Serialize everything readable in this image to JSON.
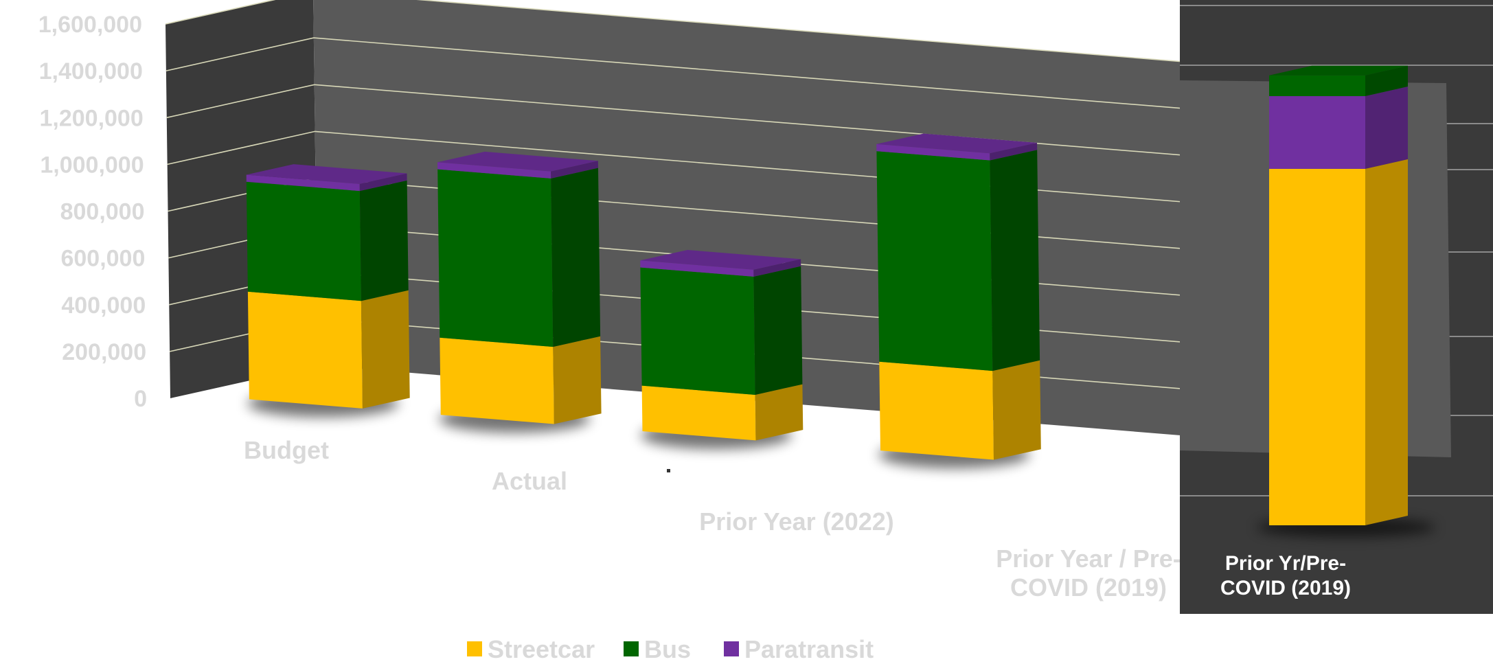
{
  "chart_data": {
    "type": "bar",
    "stacked": true,
    "style": "3d",
    "categories": [
      "Budget",
      "Actual",
      "Prior Year (2022)",
      "Prior Year / Pre-COVID (2019)"
    ],
    "category_label_lines": [
      [
        "Budget"
      ],
      [
        "Actual"
      ],
      [
        "Prior Year (2022)"
      ],
      [
        "Prior Year / Pre-",
        "COVID (2019)"
      ]
    ],
    "series": [
      {
        "name": "Streetcar",
        "color": "#FFC000",
        "values": [
          460000,
          330000,
          195000,
          380000
        ]
      },
      {
        "name": "Bus",
        "color": "#006600",
        "values": [
          470000,
          720000,
          505000,
          900000
        ]
      },
      {
        "name": "Paratransit",
        "color": "#7030A0",
        "values": [
          30000,
          30000,
          30000,
          30000
        ]
      }
    ],
    "ylim": [
      0,
      1600000
    ],
    "yticks": [
      "0",
      "200,000",
      "400,000",
      "600,000",
      "800,000",
      "1,000,000",
      "1,200,000",
      "1,400,000",
      "1,600,000"
    ],
    "grid": true,
    "legend_position": "bottom",
    "colors": {
      "wall": "#595959",
      "side_wall": "#3a3a3a",
      "gridline": "#d8d8b8",
      "text": "#d9d9d9"
    }
  },
  "inset": {
    "label_lines": [
      "Prior Yr/Pre-",
      "COVID (2019)"
    ],
    "values": {
      "Streetcar": 1030000,
      "Paratransit": 210000,
      "Bus": 60000
    },
    "colors": {
      "background": "#3a3a3a",
      "gridline": "#8a8a8a",
      "label": "#ffffff"
    }
  }
}
